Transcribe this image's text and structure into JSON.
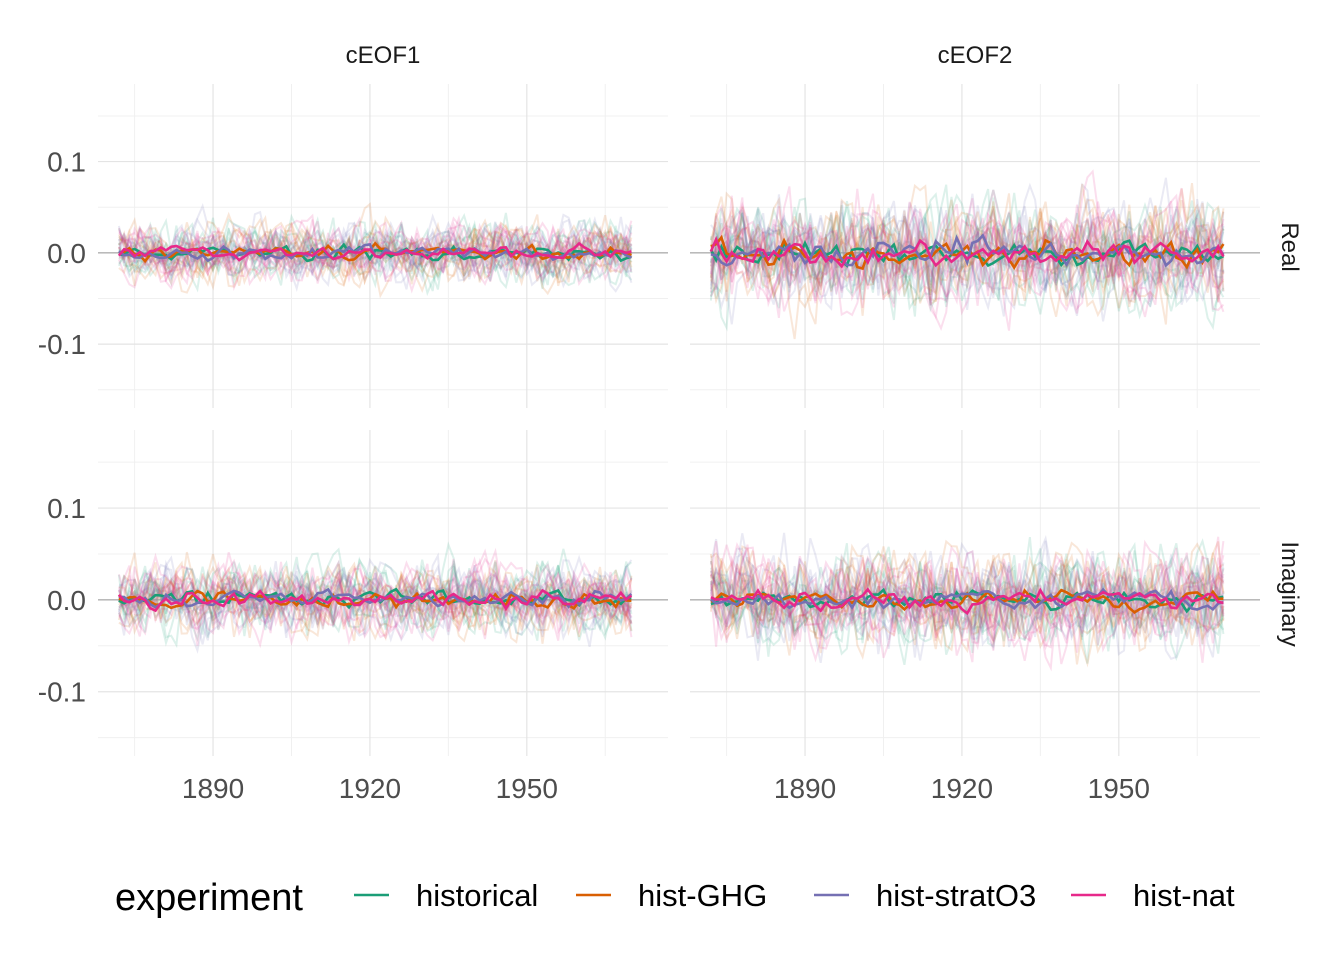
{
  "chart_data": {
    "type": "line",
    "facets": {
      "columns": [
        "cEOF1",
        "cEOF2"
      ],
      "rows": [
        "Real",
        "Imaginary"
      ]
    },
    "x_ticks": [
      1890,
      1920,
      1950
    ],
    "xlim": [
      1868,
      1977
    ],
    "y_ticks": [
      {
        "value": 0.1,
        "label": "0.1"
      },
      {
        "value": 0.0,
        "label": "0.0"
      },
      {
        "value": -0.1,
        "label": "-0.1"
      }
    ],
    "ylim": [
      -0.17,
      0.185
    ],
    "legend": {
      "title": "experiment",
      "position": "bottom"
    },
    "series": [
      {
        "name": "historical",
        "color": "#1B9E77"
      },
      {
        "name": "hist-GHG",
        "color": "#D95F02"
      },
      {
        "name": "hist-stratO3",
        "color": "#7570B3"
      },
      {
        "name": "hist-nat",
        "color": "#E7298A"
      }
    ],
    "ensemble_members_per_series": 8,
    "panels": [
      {
        "column": "cEOF1",
        "row": "Real",
        "member_spread": 0.025,
        "mean_spread": 0.006
      },
      {
        "column": "cEOF2",
        "row": "Real",
        "member_spread": 0.045,
        "mean_spread": 0.011
      },
      {
        "column": "cEOF1",
        "row": "Imaginary",
        "member_spread": 0.03,
        "mean_spread": 0.007
      },
      {
        "column": "cEOF2",
        "row": "Imaginary",
        "member_spread": 0.04,
        "mean_spread": 0.008
      }
    ],
    "x_start": 1872,
    "x_end": 1970,
    "grid": true
  }
}
